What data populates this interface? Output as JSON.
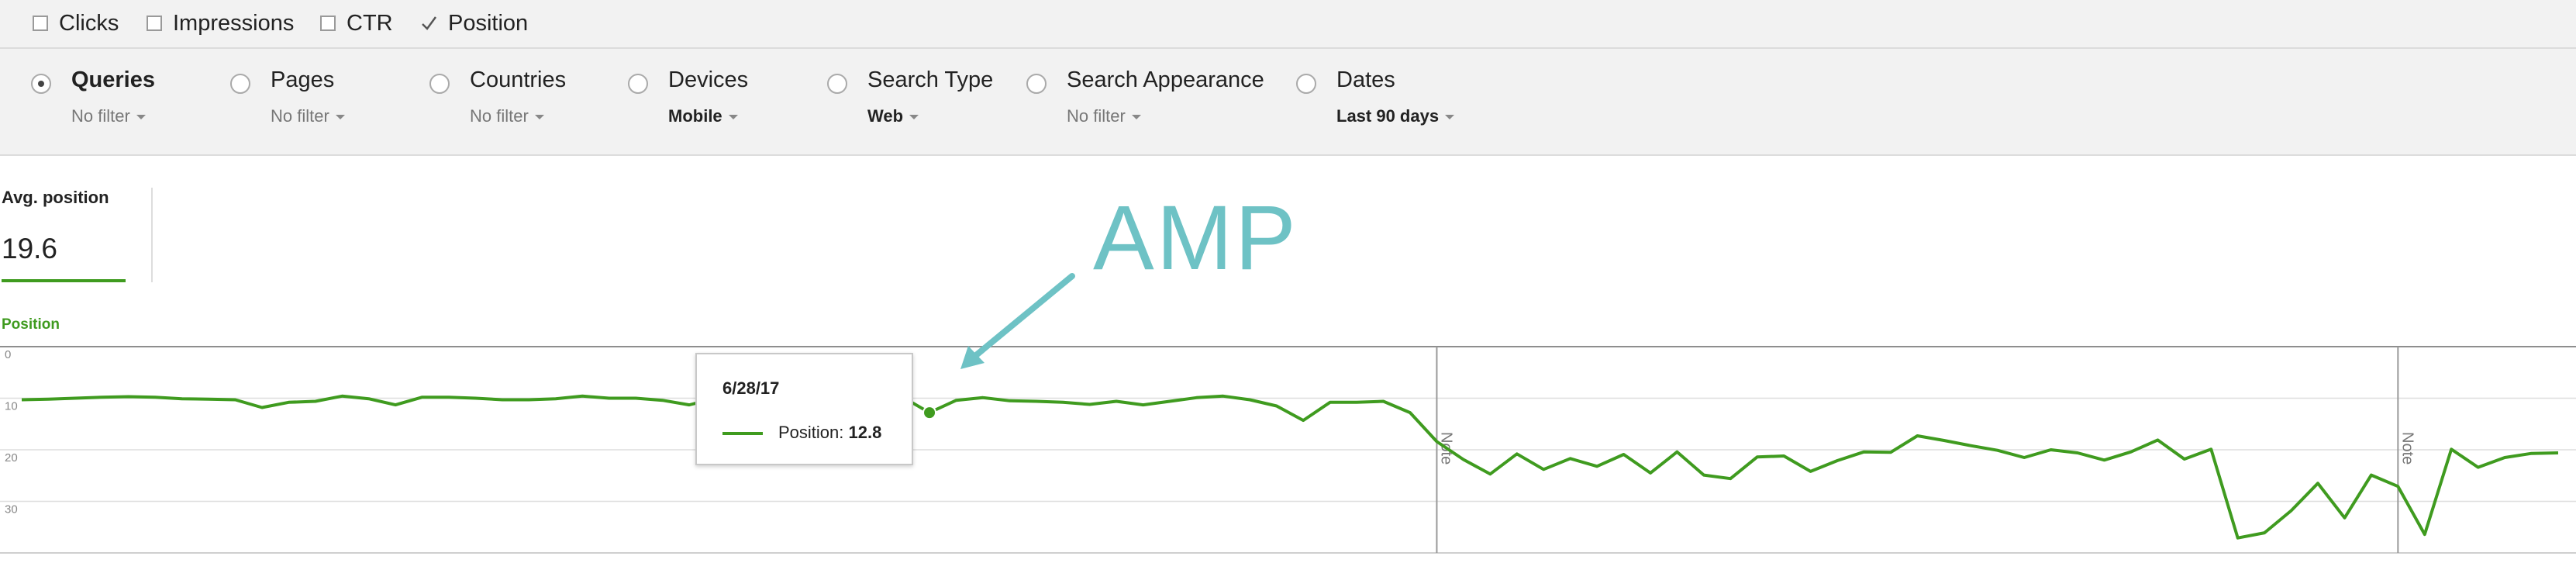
{
  "metrics": [
    {
      "label": "Clicks",
      "checked": false
    },
    {
      "label": "Impressions",
      "checked": false
    },
    {
      "label": "CTR",
      "checked": false
    },
    {
      "label": "Position",
      "checked": true
    }
  ],
  "filters": [
    {
      "label": "Queries",
      "value": "No filter",
      "selected": true
    },
    {
      "label": "Pages",
      "value": "No filter",
      "selected": false
    },
    {
      "label": "Countries",
      "value": "No filter",
      "selected": false
    },
    {
      "label": "Devices",
      "value": "Mobile",
      "selected": false
    },
    {
      "label": "Search Type",
      "value": "Web",
      "selected": false
    },
    {
      "label": "Search Appearance",
      "value": "No filter",
      "selected": false
    },
    {
      "label": "Dates",
      "value": "Last 90 days",
      "selected": false
    }
  ],
  "summary": {
    "title": "Avg. position",
    "value": "19.6"
  },
  "series_label": "Position",
  "tooltip": {
    "date": "6/28/17",
    "label": "Position:",
    "value": "12.8"
  },
  "annotation": {
    "text": "AMP",
    "color": "#6ec2c5"
  },
  "colors": {
    "series": "#3f9b1f",
    "panel_bg": "#f2f2f2",
    "annotation": "#6ec2c5"
  },
  "chart_data": {
    "type": "line",
    "ylim": [
      0,
      40
    ],
    "y_inverted": true,
    "y_ticks": [
      "0",
      "10",
      "20",
      "30"
    ],
    "series": [
      {
        "values": [
          10.3,
          10.2,
          10.0,
          9.8,
          9.7,
          9.8,
          10.1,
          10.2,
          10.3,
          11.8,
          10.8,
          10.6,
          9.6,
          10.1,
          11.3,
          9.8,
          9.8,
          10.0,
          10.3,
          10.3,
          10.1,
          9.6,
          10.0,
          10.0,
          10.4,
          11.3,
          10.0,
          10.5,
          9.6,
          10.4,
          11.0,
          12.1,
          10.8,
          9.8,
          12.8,
          10.4,
          9.9,
          10.5,
          10.6,
          10.8,
          11.2,
          10.6,
          11.3,
          10.6,
          9.9,
          9.6,
          10.3,
          11.5,
          14.3,
          10.8,
          10.8,
          10.6,
          12.8,
          18.4,
          21.9,
          24.7,
          20.8,
          23.8,
          21.7,
          23.2,
          20.9,
          24.5,
          20.4,
          24.9,
          25.6,
          21.4,
          21.2,
          24.2,
          22.1,
          20.4,
          20.5,
          17.3,
          18.2,
          19.2,
          20.1,
          21.5,
          20.0,
          20.6,
          22.0,
          20.4,
          18.1,
          21.8,
          19.9,
          37.1,
          36.1,
          31.8,
          26.5,
          33.2,
          24.9,
          27.1,
          36.4,
          19.9,
          23.4,
          21.5,
          20.7,
          20.6
        ]
      }
    ],
    "x_note_indices": [
      53,
      89
    ],
    "notes": [
      "Note",
      "Note"
    ],
    "highlight_index": 34
  }
}
